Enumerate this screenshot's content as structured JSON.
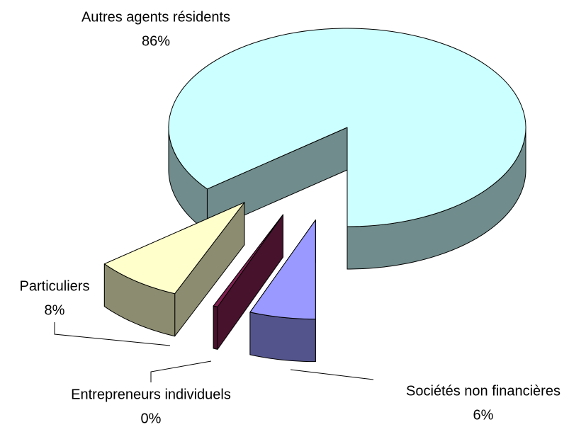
{
  "chart_data": {
    "type": "pie3d",
    "categories": [
      "Autres agents résidents",
      "Particuliers",
      "Entrepreneurs individuels",
      "Sociétés non financières"
    ],
    "values": [
      86,
      8,
      0.4,
      6
    ],
    "value_labels": [
      "86%",
      "8%",
      "0%",
      "6%"
    ],
    "colors": [
      "#ccffff",
      "#ffffcc",
      "#802050",
      "#9999ff"
    ]
  }
}
